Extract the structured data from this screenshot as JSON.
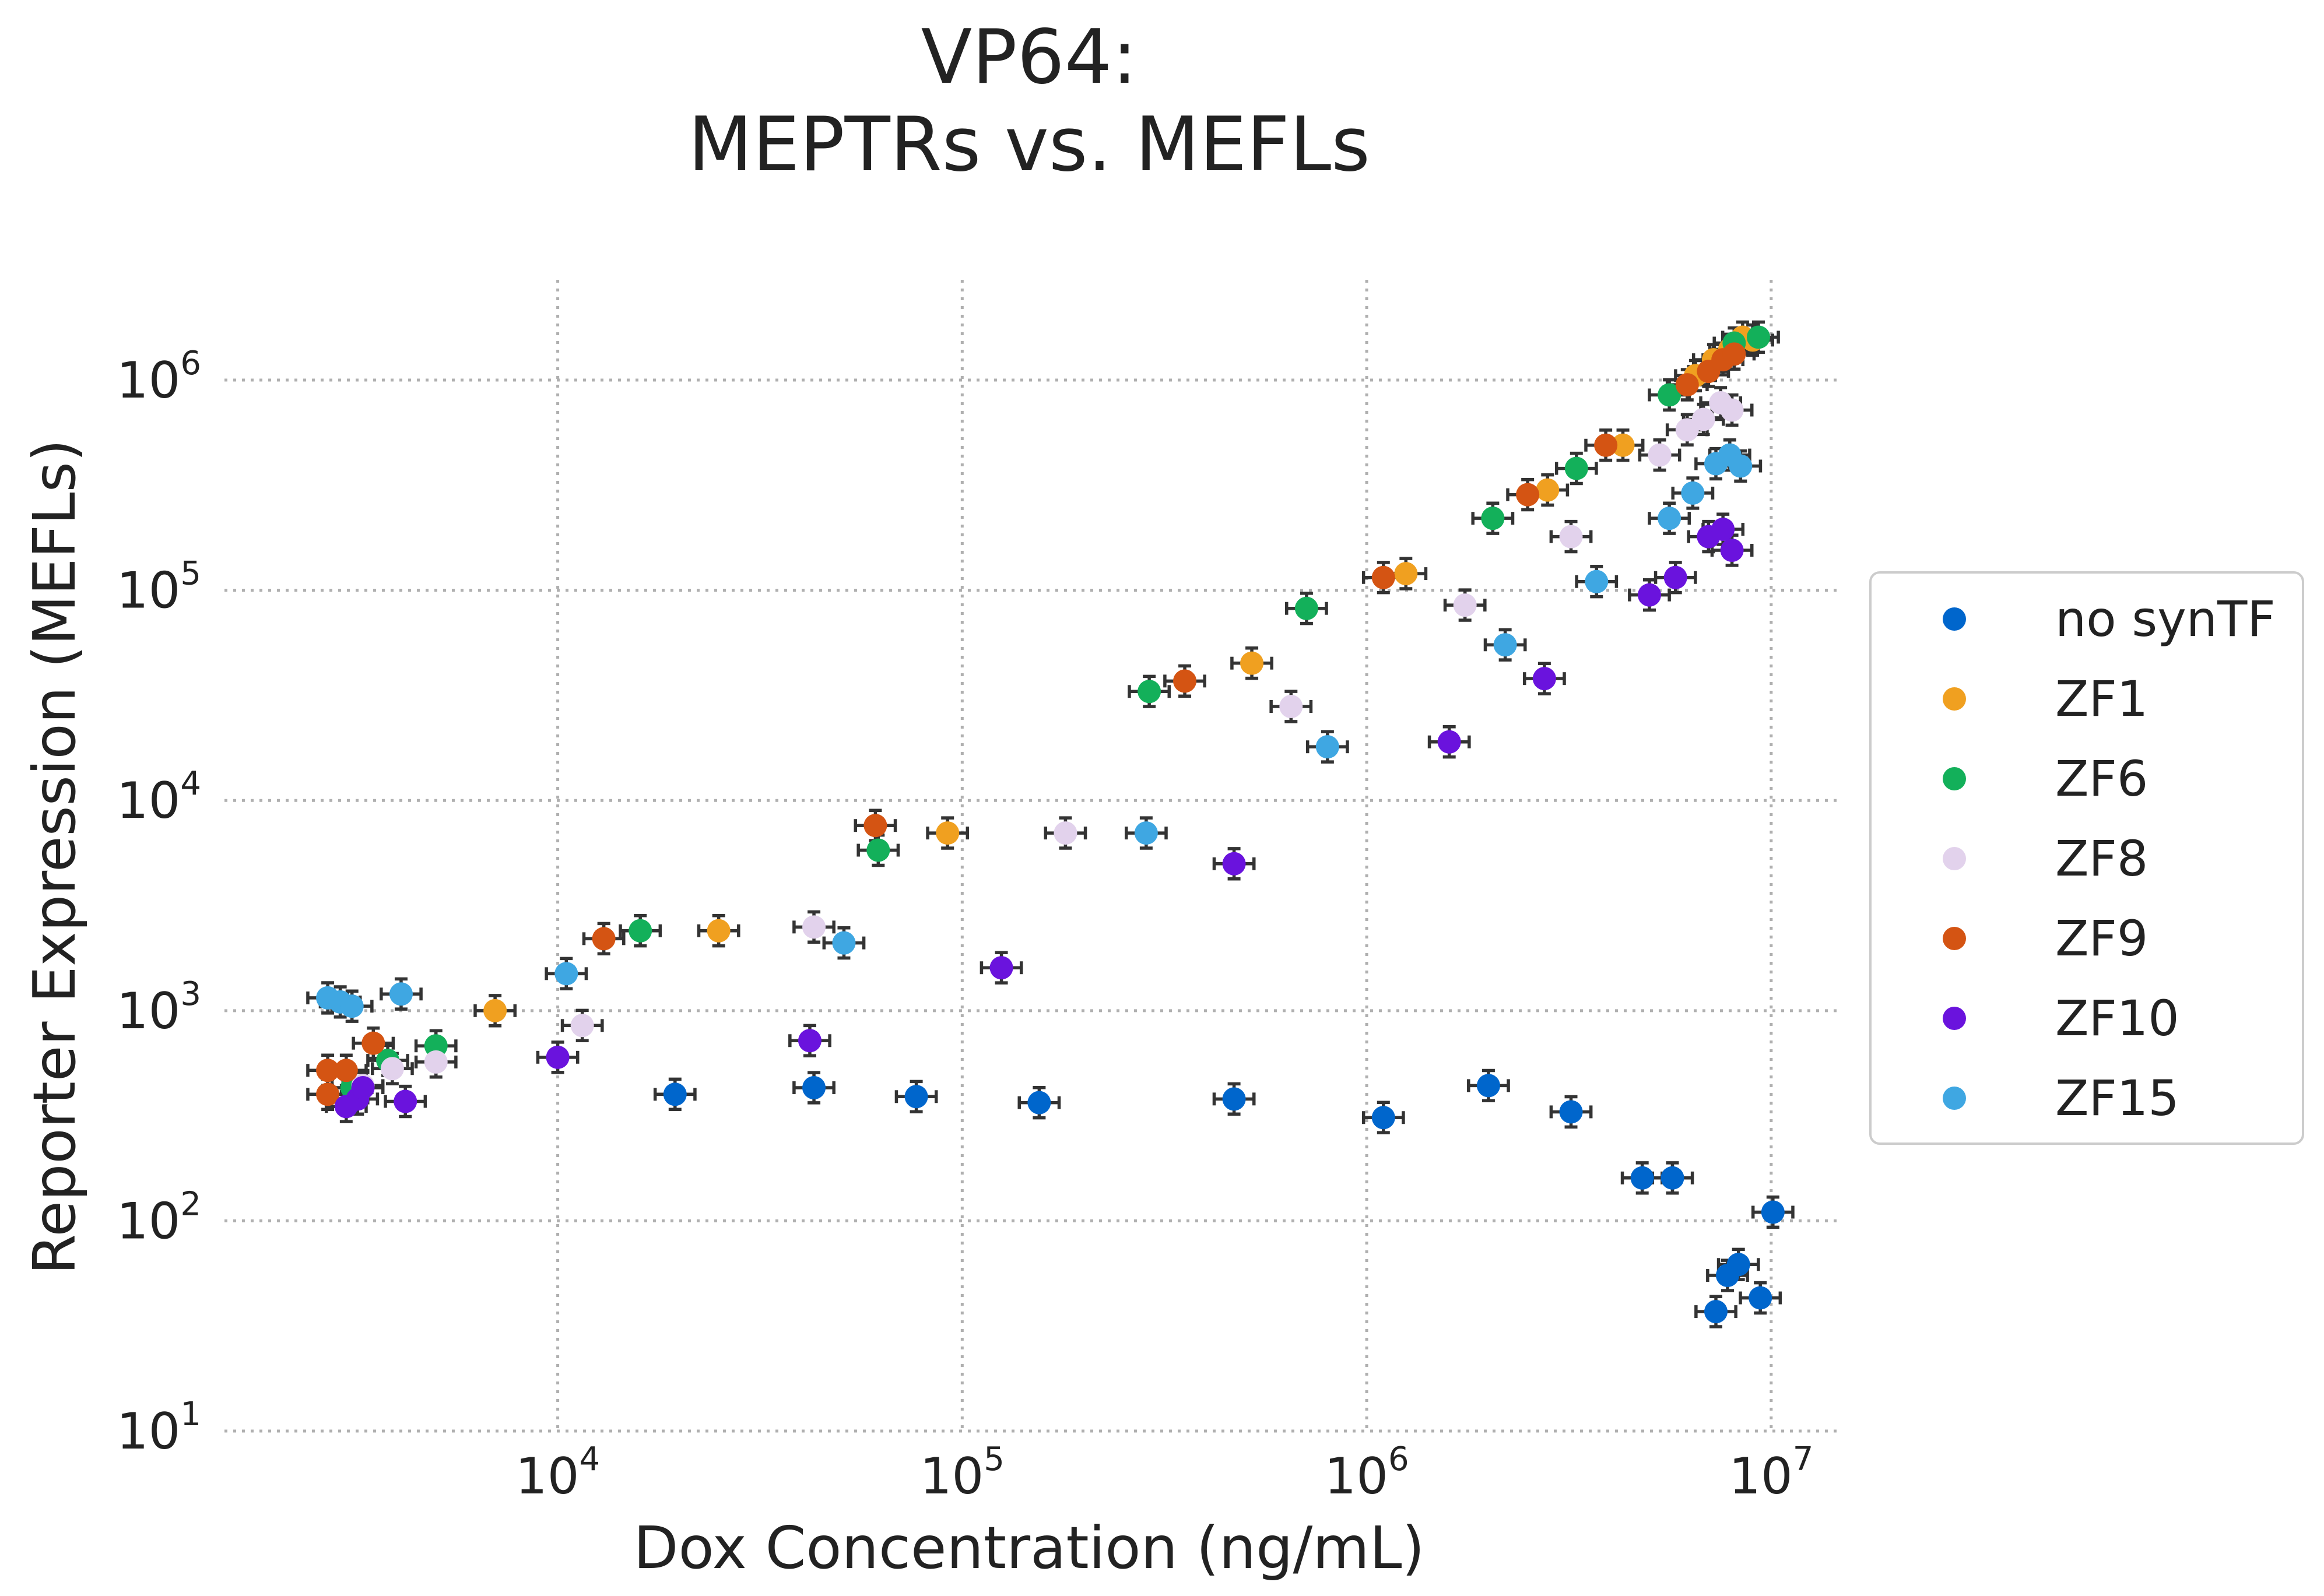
{
  "chart_data": {
    "type": "scatter",
    "title_lines": [
      "VP64:",
      "MEPTRs vs. MEFLs"
    ],
    "xlabel": "Dox Concentration (ng/mL)",
    "ylabel": "Reporter Expression (MEFLs)",
    "x_scale": "log",
    "y_scale": "log",
    "xlim": [
      1500,
      15000000
    ],
    "ylim": [
      10,
      3000000
    ],
    "x_ticks": [
      {
        "base": "10",
        "exp": "4",
        "value": 10000
      },
      {
        "base": "10",
        "exp": "5",
        "value": 100000
      },
      {
        "base": "10",
        "exp": "6",
        "value": 1000000
      },
      {
        "base": "10",
        "exp": "7",
        "value": 10000000
      }
    ],
    "y_ticks": [
      {
        "base": "10",
        "exp": "1",
        "value": 10
      },
      {
        "base": "10",
        "exp": "2",
        "value": 100
      },
      {
        "base": "10",
        "exp": "3",
        "value": 1000
      },
      {
        "base": "10",
        "exp": "4",
        "value": 10000
      },
      {
        "base": "10",
        "exp": "5",
        "value": 100000
      },
      {
        "base": "10",
        "exp": "6",
        "value": 1000000
      }
    ],
    "grid": true,
    "legend_position": "right",
    "series": [
      {
        "name": "no synTF",
        "color": "#0066cc",
        "points": [
          [
            19500,
            400
          ],
          [
            43000,
            430
          ],
          [
            77000,
            390
          ],
          [
            155000,
            365
          ],
          [
            470000,
            380
          ],
          [
            1100000,
            310
          ],
          [
            2000000,
            440
          ],
          [
            3200000,
            330
          ],
          [
            4800000,
            160
          ],
          [
            5700000,
            160
          ],
          [
            7300000,
            37
          ],
          [
            7800000,
            55
          ],
          [
            8300000,
            62
          ],
          [
            9400000,
            43
          ],
          [
            10100000,
            110
          ]
        ]
      },
      {
        "name": "ZF1",
        "color": "#f0a020",
        "points": [
          [
            7000,
            1000
          ],
          [
            25000,
            2400
          ],
          [
            92000,
            7000
          ],
          [
            520000,
            45000
          ],
          [
            1250000,
            120000
          ],
          [
            2800000,
            300000
          ],
          [
            4300000,
            490000
          ],
          [
            6500000,
            1050000
          ],
          [
            7200000,
            1250000
          ],
          [
            7900000,
            1400000
          ],
          [
            8500000,
            1600000
          ],
          [
            9000000,
            1550000
          ]
        ]
      },
      {
        "name": "ZF6",
        "color": "#13b05a",
        "points": [
          [
            3100,
            430
          ],
          [
            3800,
            580
          ],
          [
            5000,
            680
          ],
          [
            16000,
            2400
          ],
          [
            62000,
            5800
          ],
          [
            290000,
            33000
          ],
          [
            710000,
            82000
          ],
          [
            2050000,
            220000
          ],
          [
            3300000,
            380000
          ],
          [
            5600000,
            850000
          ],
          [
            8100000,
            1500000
          ],
          [
            9300000,
            1600000
          ]
        ]
      },
      {
        "name": "ZF8",
        "color": "#e2d2ec",
        "points": [
          [
            3300,
            440
          ],
          [
            3900,
            530
          ],
          [
            5000,
            570
          ],
          [
            11500,
            850
          ],
          [
            43000,
            2500
          ],
          [
            180000,
            7000
          ],
          [
            650000,
            28000
          ],
          [
            1750000,
            85000
          ],
          [
            3200000,
            180000
          ],
          [
            5300000,
            440000
          ],
          [
            6200000,
            580000
          ],
          [
            6800000,
            650000
          ],
          [
            7500000,
            780000
          ],
          [
            8000000,
            720000
          ]
        ]
      },
      {
        "name": "ZF9",
        "color": "#d45413",
        "points": [
          [
            2700,
            400
          ],
          [
            2700,
            520
          ],
          [
            3000,
            520
          ],
          [
            3500,
            700
          ],
          [
            13000,
            2200
          ],
          [
            61000,
            7600
          ],
          [
            355000,
            37000
          ],
          [
            1100000,
            115000
          ],
          [
            2500000,
            285000
          ],
          [
            3900000,
            490000
          ],
          [
            6200000,
            950000
          ],
          [
            7000000,
            1100000
          ],
          [
            7600000,
            1250000
          ],
          [
            8100000,
            1330000
          ]
        ]
      },
      {
        "name": "ZF10",
        "color": "#6a13dd",
        "points": [
          [
            3000,
            350
          ],
          [
            3200,
            380
          ],
          [
            3300,
            430
          ],
          [
            4200,
            370
          ],
          [
            10000,
            600
          ],
          [
            42000,
            720
          ],
          [
            125000,
            1600
          ],
          [
            470000,
            5000
          ],
          [
            1600000,
            19000
          ],
          [
            2750000,
            38000
          ],
          [
            5000000,
            95000
          ],
          [
            5800000,
            115000
          ],
          [
            7000000,
            180000
          ],
          [
            7600000,
            195000
          ],
          [
            8000000,
            155000
          ]
        ]
      },
      {
        "name": "ZF15",
        "color": "#3fa7e2",
        "points": [
          [
            2700,
            1150
          ],
          [
            2900,
            1100
          ],
          [
            3100,
            1050
          ],
          [
            4100,
            1200
          ],
          [
            10500,
            1500
          ],
          [
            51000,
            2100
          ],
          [
            285000,
            7000
          ],
          [
            800000,
            18000
          ],
          [
            2200000,
            55000
          ],
          [
            3700000,
            110000
          ],
          [
            5600000,
            220000
          ],
          [
            6400000,
            290000
          ],
          [
            7300000,
            400000
          ],
          [
            7900000,
            440000
          ],
          [
            8400000,
            390000
          ]
        ]
      }
    ]
  }
}
